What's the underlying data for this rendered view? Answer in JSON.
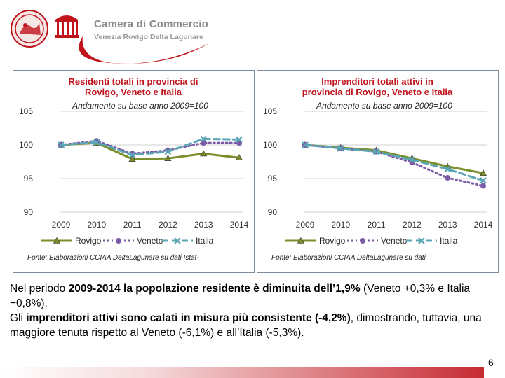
{
  "brand": {
    "title": "Camera di Commercio",
    "subtitle": "Venezia Rovigo Delta Lagunare",
    "colors": {
      "red": "#c0131c",
      "gray": "#8a8a8a"
    }
  },
  "chart_data": [
    {
      "type": "line",
      "title_lines": [
        "Residenti totali in provincia di",
        "Rovigo, Veneto e Italia"
      ],
      "subtitle": "Andamento su base anno 2009=100",
      "x": [
        "2009",
        "2010",
        "2011",
        "2012",
        "2013",
        "2014"
      ],
      "ylim": [
        90,
        105
      ],
      "yticks": [
        90,
        95,
        100,
        105
      ],
      "grid": true,
      "series": [
        {
          "name": "Rovigo",
          "values": [
            100,
            100.3,
            97.9,
            98.0,
            98.7,
            98.1
          ],
          "color": "#7a8f2b",
          "style": "solid",
          "marker": "triangle"
        },
        {
          "name": "Veneto",
          "values": [
            100,
            100.6,
            98.7,
            99.2,
            100.3,
            100.3
          ],
          "color": "#7b5aa6",
          "style": "dotted",
          "marker": "circle"
        },
        {
          "name": "Italia",
          "values": [
            100,
            100.4,
            98.5,
            99.0,
            100.9,
            100.8
          ],
          "color": "#5ba6b5",
          "style": "dashed",
          "marker": "x"
        }
      ],
      "legend_position": "bottom",
      "source": "Fonte: Elaborazioni CCIAA DeltaLagunare su dati Istat-"
    },
    {
      "type": "line",
      "title_lines": [
        "Imprenditori totali attivi in",
        "provincia di Rovigo, Veneto e Italia"
      ],
      "subtitle": "Andamento su base anno 2009=100",
      "x": [
        "2009",
        "2010",
        "2011",
        "2012",
        "2013",
        "2014"
      ],
      "ylim": [
        90,
        105
      ],
      "yticks": [
        90,
        95,
        100,
        105
      ],
      "grid": true,
      "series": [
        {
          "name": "Rovigo",
          "values": [
            100,
            99.6,
            99.2,
            98.0,
            96.8,
            95.8
          ],
          "color": "#7a8f2b",
          "style": "solid",
          "marker": "triangle"
        },
        {
          "name": "Veneto",
          "values": [
            100,
            99.5,
            99.0,
            97.4,
            95.1,
            93.9
          ],
          "color": "#7b5aa6",
          "style": "dotted",
          "marker": "circle"
        },
        {
          "name": "Italia",
          "values": [
            100,
            99.5,
            99.0,
            97.8,
            96.4,
            94.7
          ],
          "color": "#5ba6b5",
          "style": "dashed",
          "marker": "x"
        }
      ],
      "legend_position": "bottom",
      "source": "Fonte: Elaborazioni CCIAA DeltaLagunare su dati"
    }
  ],
  "body": {
    "p1_pre": "Nel periodo ",
    "p1_bold": "2009-2014 la popolazione residente è diminuita dell’1,9%",
    "p1_post": " (Veneto +0,3% e Italia +0,8%).",
    "p2_pre": "Gli ",
    "p2_bold": "imprenditori attivi sono calati in misura più consistente (-4,2%)",
    "p2_post": ", dimostrando, tuttavia, una maggiore tenuta rispetto al Veneto (-6,1%) e all’Italia (-5,3%)."
  },
  "page_number": "6"
}
